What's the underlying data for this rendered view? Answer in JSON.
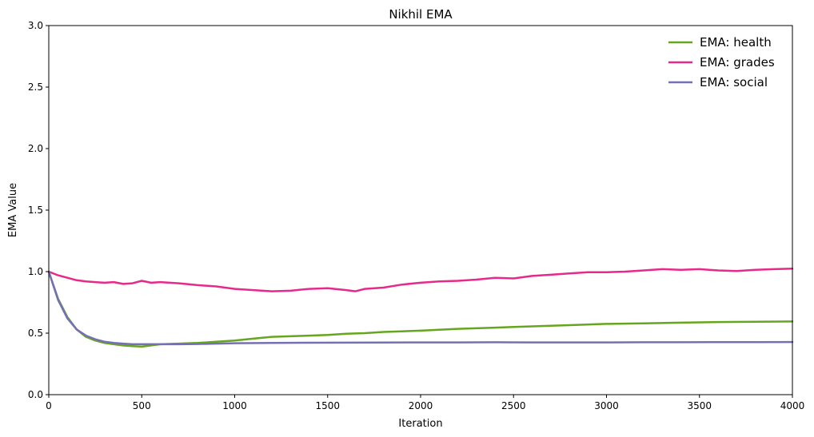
{
  "chart_data": {
    "type": "line",
    "title": "Nikhil EMA",
    "xlabel": "Iteration",
    "ylabel": "EMA Value",
    "xlim": [
      0,
      4000
    ],
    "ylim": [
      0,
      3.0
    ],
    "xticks": [
      0,
      500,
      1000,
      1500,
      2000,
      2500,
      3000,
      3500,
      4000
    ],
    "xtick_labels": [
      "0",
      "500",
      "1000",
      "1500",
      "2000",
      "2500",
      "3000",
      "3500",
      "4000"
    ],
    "yticks": [
      0,
      0.5,
      1.0,
      1.5,
      2.0,
      2.5,
      3.0
    ],
    "ytick_labels": [
      "0.0",
      "0.5",
      "1.0",
      "1.5",
      "2.0",
      "2.5",
      "3.0"
    ],
    "grid": false,
    "legend_position": "top-right",
    "series": [
      {
        "name": "EMA: health",
        "color": "#66a61e",
        "x": [
          0,
          50,
          100,
          150,
          200,
          250,
          300,
          350,
          400,
          450,
          500,
          550,
          600,
          700,
          800,
          900,
          1000,
          1100,
          1200,
          1300,
          1400,
          1500,
          1600,
          1700,
          1800,
          1900,
          2000,
          2200,
          2400,
          2600,
          2800,
          3000,
          3200,
          3400,
          3600,
          3800,
          4000
        ],
        "y": [
          1.0,
          0.78,
          0.63,
          0.53,
          0.47,
          0.44,
          0.42,
          0.41,
          0.4,
          0.395,
          0.39,
          0.4,
          0.41,
          0.415,
          0.42,
          0.43,
          0.44,
          0.455,
          0.47,
          0.475,
          0.48,
          0.485,
          0.495,
          0.5,
          0.51,
          0.515,
          0.52,
          0.535,
          0.545,
          0.555,
          0.565,
          0.575,
          0.58,
          0.585,
          0.59,
          0.593,
          0.595
        ]
      },
      {
        "name": "EMA: grades",
        "color": "#e7298a",
        "x": [
          0,
          50,
          100,
          150,
          200,
          250,
          300,
          350,
          400,
          450,
          500,
          550,
          600,
          700,
          800,
          900,
          1000,
          1100,
          1200,
          1300,
          1400,
          1500,
          1600,
          1650,
          1700,
          1800,
          1900,
          2000,
          2100,
          2200,
          2300,
          2400,
          2500,
          2600,
          2700,
          2800,
          2900,
          3000,
          3100,
          3200,
          3300,
          3400,
          3500,
          3600,
          3700,
          3800,
          3900,
          4000
        ],
        "y": [
          1.0,
          0.97,
          0.95,
          0.93,
          0.92,
          0.915,
          0.91,
          0.915,
          0.9,
          0.905,
          0.925,
          0.91,
          0.915,
          0.905,
          0.89,
          0.88,
          0.86,
          0.85,
          0.84,
          0.845,
          0.86,
          0.865,
          0.85,
          0.84,
          0.86,
          0.87,
          0.895,
          0.91,
          0.92,
          0.925,
          0.935,
          0.95,
          0.945,
          0.965,
          0.975,
          0.985,
          0.995,
          0.995,
          1.0,
          1.01,
          1.02,
          1.015,
          1.02,
          1.01,
          1.005,
          1.015,
          1.02,
          1.025
        ]
      },
      {
        "name": "EMA: social",
        "color": "#7570b3",
        "x": [
          0,
          50,
          100,
          150,
          200,
          250,
          300,
          350,
          400,
          450,
          500,
          550,
          600,
          700,
          800,
          900,
          1000,
          1200,
          1400,
          1600,
          1800,
          2000,
          2200,
          2400,
          2600,
          2800,
          3000,
          3200,
          3400,
          3600,
          3800,
          4000
        ],
        "y": [
          1.0,
          0.77,
          0.62,
          0.53,
          0.48,
          0.45,
          0.43,
          0.42,
          0.415,
          0.41,
          0.41,
          0.41,
          0.41,
          0.41,
          0.412,
          0.415,
          0.418,
          0.42,
          0.422,
          0.423,
          0.424,
          0.425,
          0.425,
          0.426,
          0.425,
          0.425,
          0.425,
          0.426,
          0.426,
          0.427,
          0.427,
          0.428
        ]
      }
    ]
  }
}
